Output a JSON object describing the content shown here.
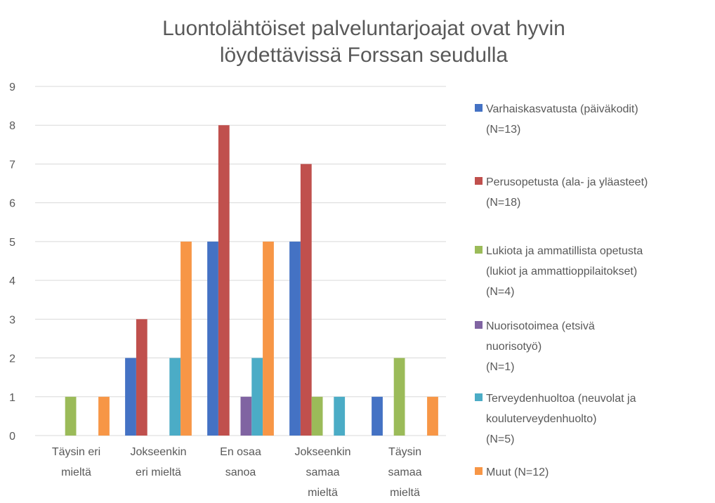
{
  "chart_data": {
    "type": "bar",
    "title": "Luontolähtöiset palveluntarjoajat ovat hyvin\nlöydettävissä Forssan seudulla",
    "categories": [
      "Täysin eri\nmieltä",
      "Jokseenkin\neri mieltä",
      "En osaa\nsanoa",
      "Jokseenkin\nsamaa\nmieltä",
      "Täysin\nsamaa\nmieltä"
    ],
    "series": [
      {
        "name": "Varhaiskasvatusta (päiväkodit)\n(N=13)",
        "color": "#4472c4",
        "values": [
          0,
          2,
          5,
          5,
          1
        ]
      },
      {
        "name": "Perusopetusta (ala- ja yläasteet)\n(N=18)",
        "color": "#c0504d",
        "values": [
          0,
          3,
          8,
          7,
          0
        ]
      },
      {
        "name": "Lukiota ja ammatillista opetusta\n(lukiot ja ammattioppilaitokset)\n(N=4)",
        "color": "#9bbb59",
        "values": [
          1,
          0,
          0,
          1,
          2
        ]
      },
      {
        "name": "Nuorisotoimea (etsivä\nnuorisotyö)\n(N=1)",
        "color": "#8064a2",
        "values": [
          0,
          0,
          1,
          0,
          0
        ]
      },
      {
        "name": "Terveydenhuoltoa (neuvolat ja\nkouluterveydenhuolto)\n(N=5)",
        "color": "#4bacc6",
        "values": [
          0,
          2,
          2,
          1,
          0
        ]
      },
      {
        "name": "Muut (N=12)",
        "color": "#f79646",
        "values": [
          1,
          5,
          5,
          0,
          1
        ]
      }
    ],
    "ylim": [
      0,
      9
    ],
    "yticks": [
      0,
      1,
      2,
      3,
      4,
      5,
      6,
      7,
      8,
      9
    ],
    "grid": true,
    "legend": "right"
  }
}
